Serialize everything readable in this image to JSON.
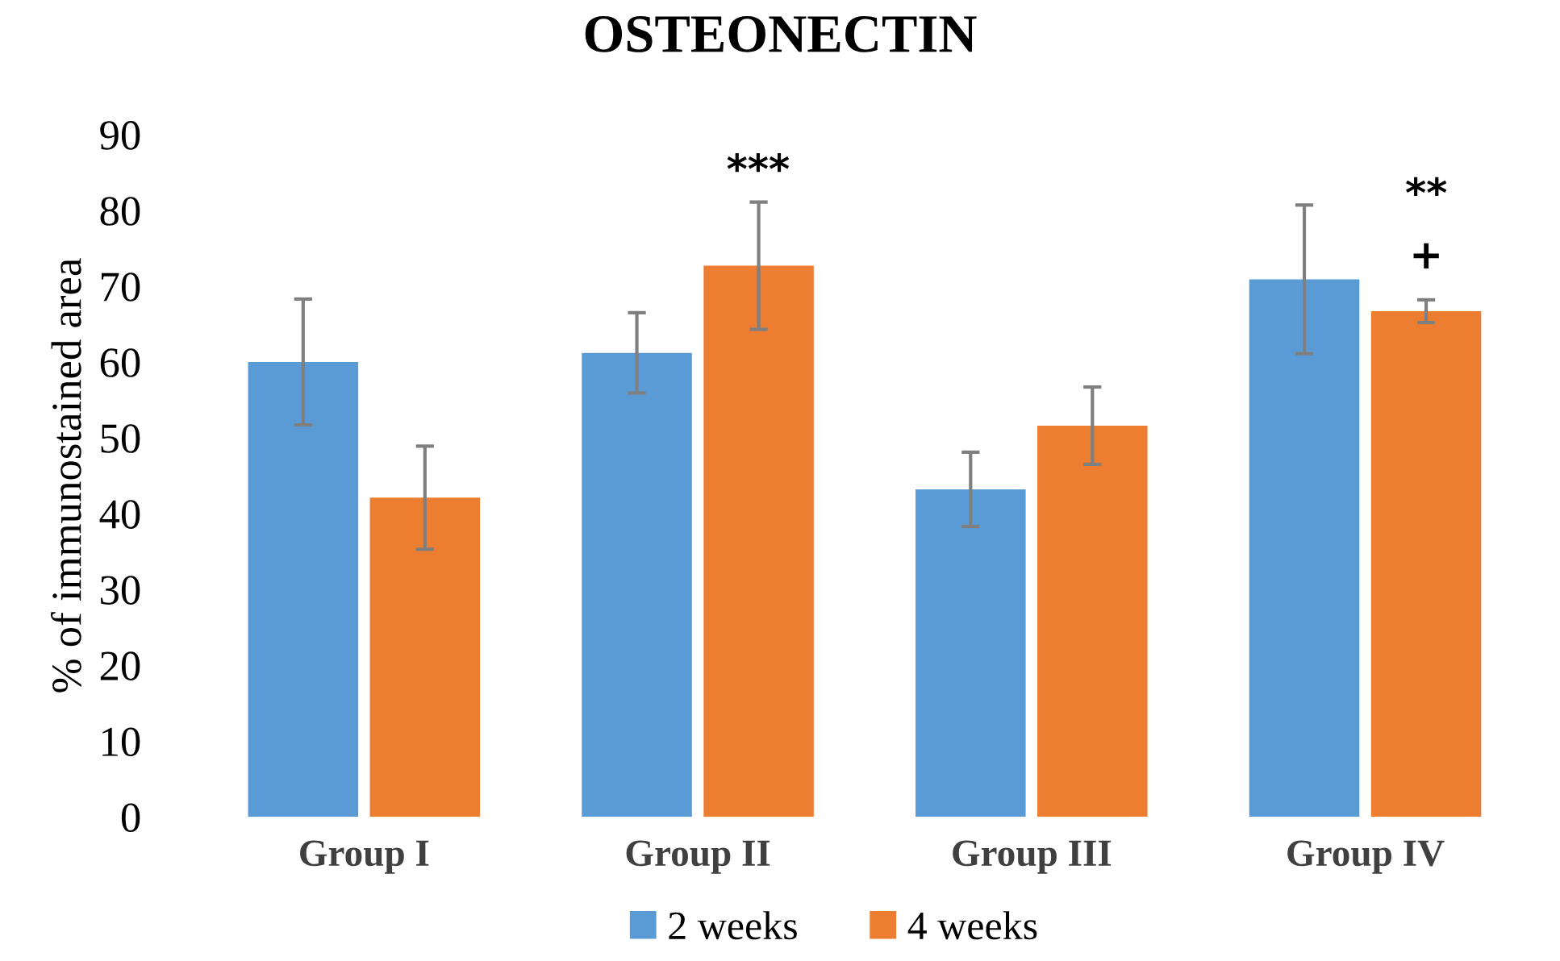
{
  "chart_data": {
    "type": "bar",
    "title": "OSTEONECTIN",
    "ylabel": "% of immunostained area",
    "categories": [
      "Group I",
      "Group II",
      "Group III",
      "Group IV"
    ],
    "series": [
      {
        "name": "2 weeks",
        "color": "#5b9bd5",
        "values": [
          60,
          61.2,
          43.2,
          70.9
        ],
        "errors": [
          8.3,
          5.3,
          4.9,
          9.8
        ]
      },
      {
        "name": "4 weeks",
        "color": "#ed7d31",
        "values": [
          42.1,
          72.7,
          51.6,
          66.7
        ],
        "errors": [
          6.8,
          8.4,
          5.1,
          1.5
        ]
      }
    ],
    "ylim": [
      0,
      90
    ],
    "yticks": [
      0,
      10,
      20,
      30,
      40,
      50,
      60,
      70,
      80,
      90
    ],
    "grid": false,
    "legend": "bottom",
    "annotations": [
      "***",
      "+",
      "**"
    ]
  }
}
